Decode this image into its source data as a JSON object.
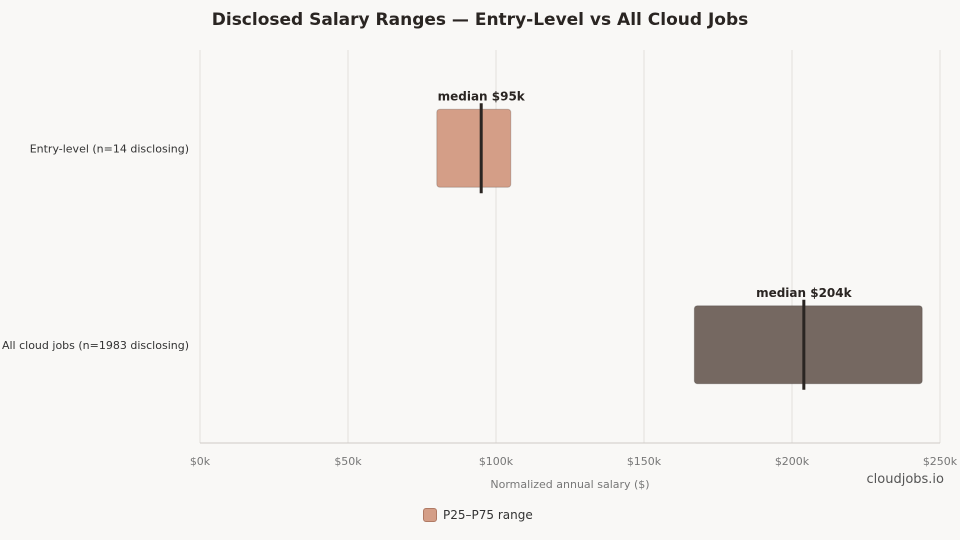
{
  "chart_data": {
    "type": "bar",
    "orientation": "horizontal",
    "title": "Disclosed Salary Ranges — Entry-Level vs All Cloud Jobs",
    "xlabel": "Normalized annual salary ($)",
    "ylabel": "",
    "xlim": [
      0,
      250000
    ],
    "xticks": [
      0,
      50000,
      100000,
      150000,
      200000,
      250000
    ],
    "xtick_labels": [
      "$0k",
      "$50k",
      "$100k",
      "$150k",
      "$200k",
      "$250k"
    ],
    "grid": true,
    "legend_position": "bottom-center",
    "categories": [
      "Entry-level (n=14 disclosing)",
      "All cloud jobs (n=1983 disclosing)"
    ],
    "series": [
      {
        "name": "P25–P75 range",
        "p25": [
          80000,
          167000
        ],
        "p75": [
          105000,
          244000
        ],
        "median": [
          95000,
          204000
        ],
        "median_labels": [
          "median $95k",
          "median $204k"
        ],
        "colors": [
          "#d49e87",
          "#756861"
        ]
      }
    ]
  },
  "watermark": "cloudjobs.io"
}
